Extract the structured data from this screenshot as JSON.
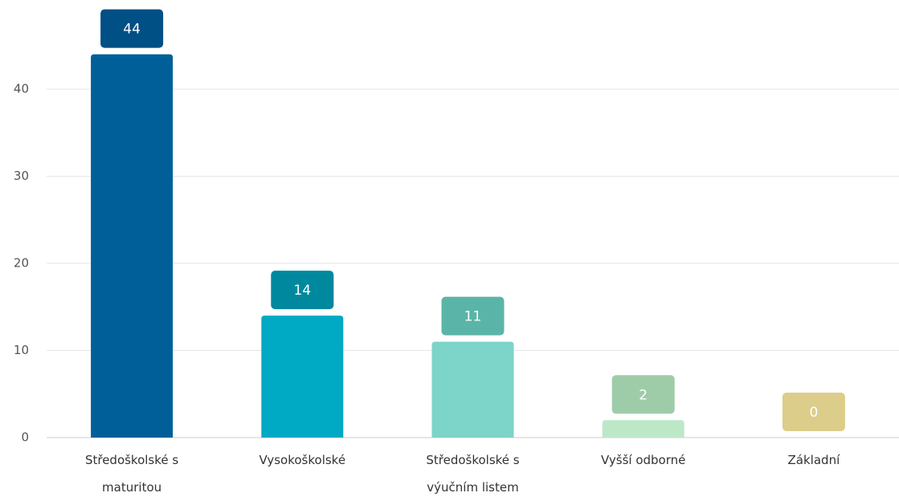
{
  "chart_data": {
    "type": "bar",
    "categories": [
      "Středoškolské s maturitou",
      "Vysokoškolské",
      "Středoškolské s výučním listem",
      "Vyšší odborné",
      "Základní"
    ],
    "values": [
      44,
      14,
      11,
      2,
      0
    ],
    "colors": [
      "#005f99",
      "#00a9c4",
      "#7dd4c8",
      "#bce8c8",
      "#eadb9c"
    ],
    "label_colors": [
      "#004f85",
      "#00899e",
      "#5ab5a8",
      "#9ecca8",
      "#dccd8a"
    ],
    "ylim": [
      0,
      50
    ],
    "yticks": [
      0,
      10,
      20,
      30,
      40
    ],
    "grid": true
  }
}
